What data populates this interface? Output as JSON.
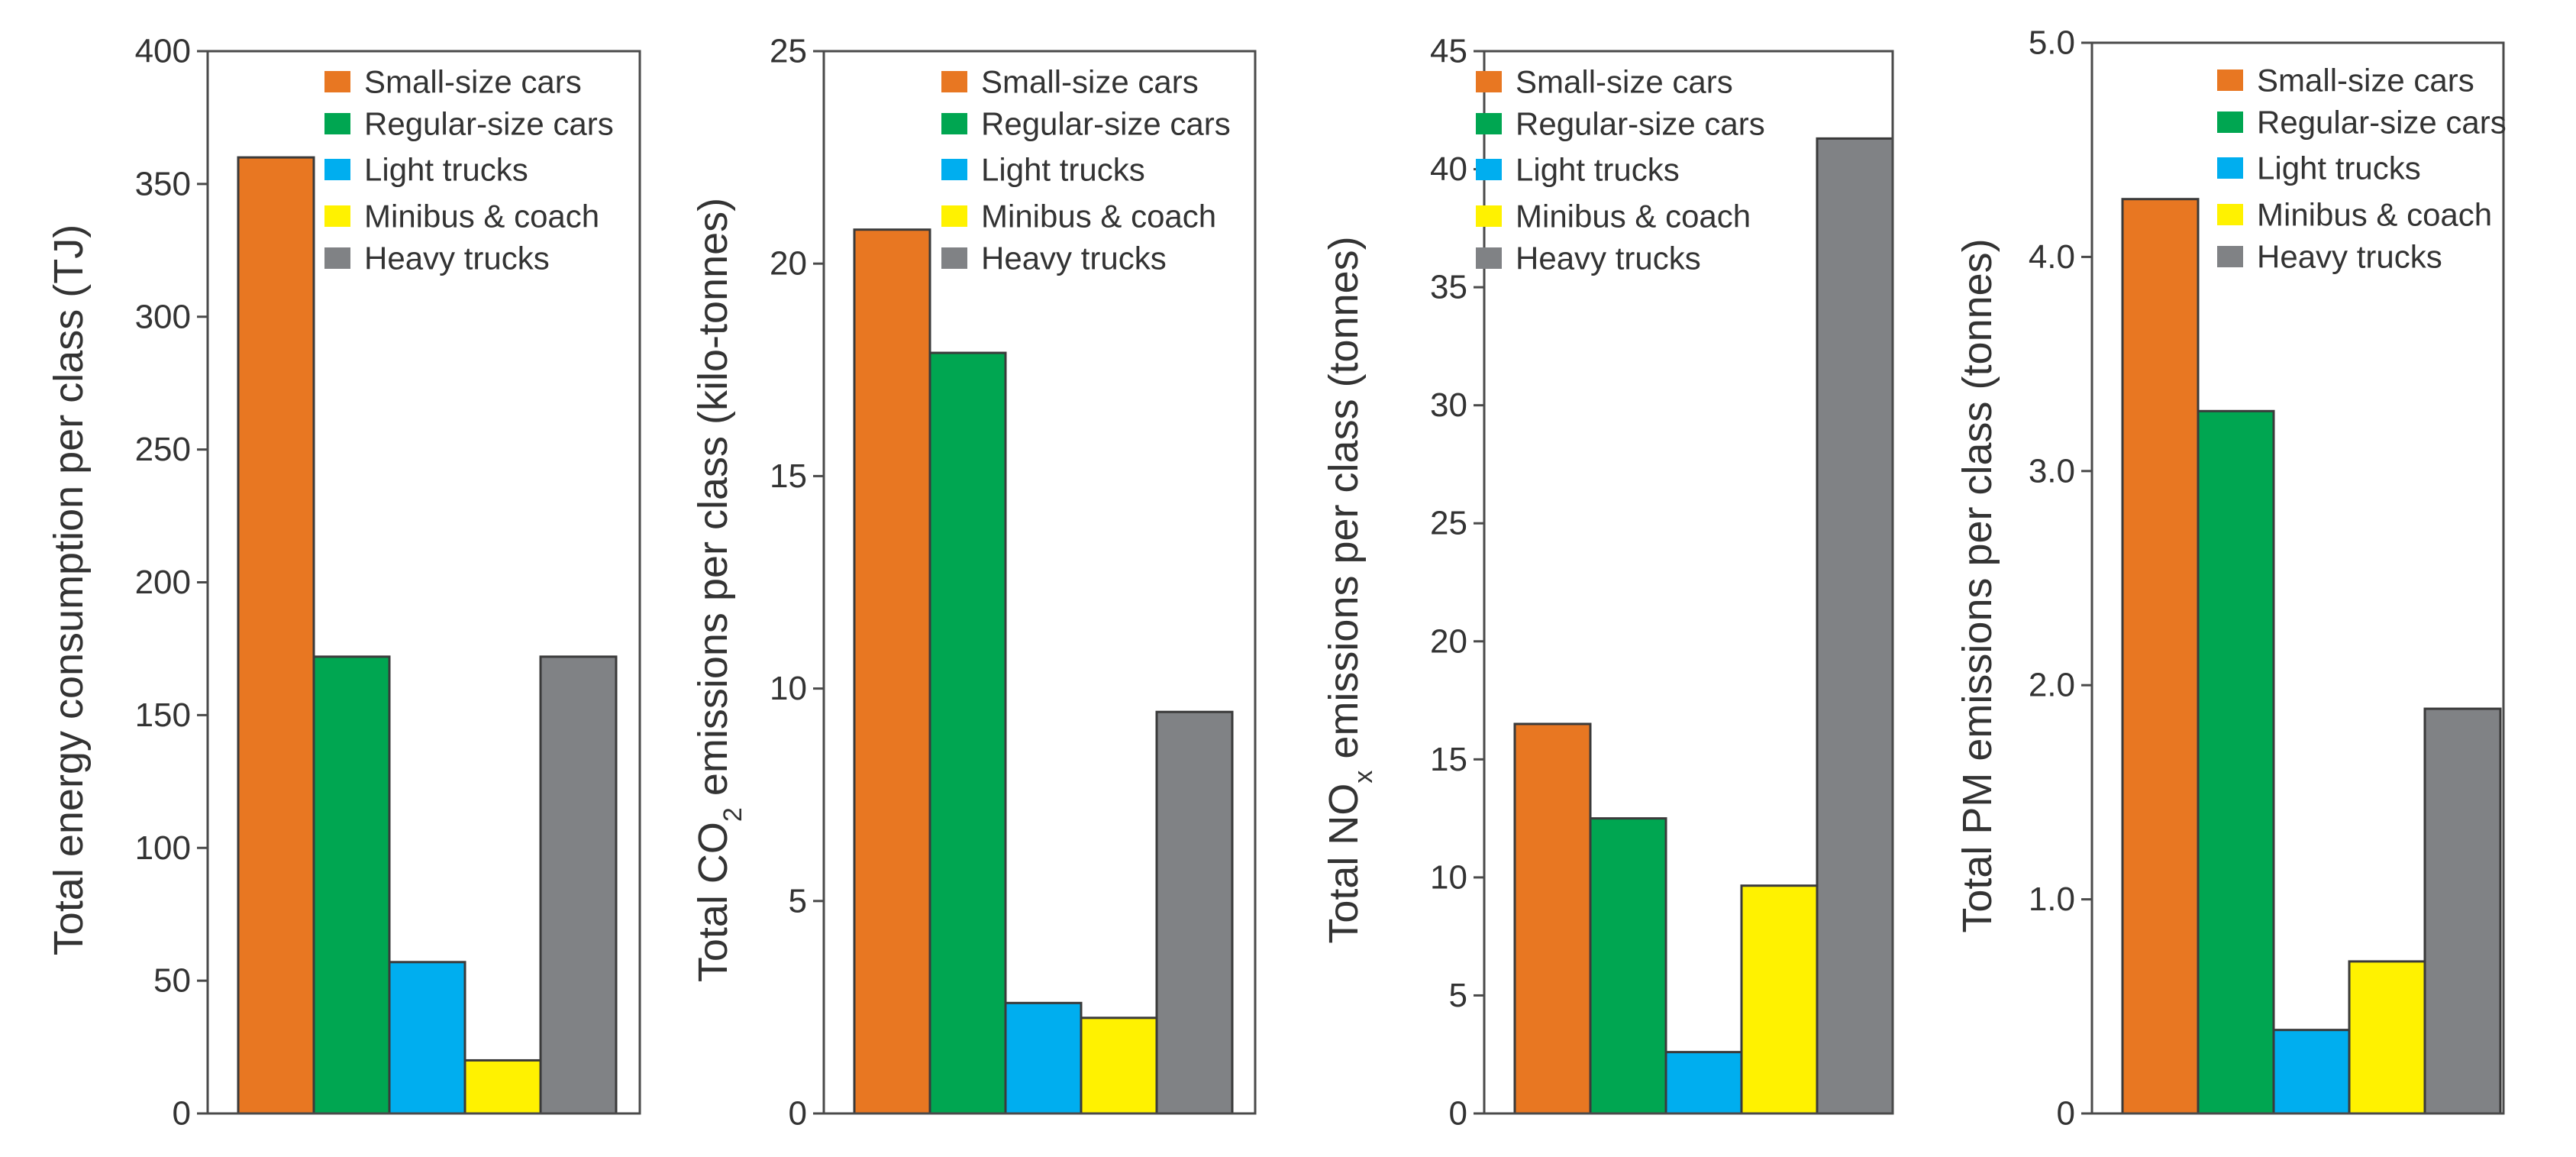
{
  "colors": {
    "Small-size cars": "#e87722",
    "Regular-size cars": "#00a651",
    "Light trucks": "#00aeef",
    "Minibus & coach": "#fff200",
    "Heavy trucks": "#808285"
  },
  "chart_data": [
    {
      "type": "bar",
      "title": "",
      "xlabel": "",
      "ylabel": "Total energy consumption per class (TJ)",
      "ylabel_parts": [
        {
          "t": "Total energy consumption per class (TJ)"
        }
      ],
      "categories": [
        "Small-size cars",
        "Regular-size cars",
        "Light trucks",
        "Minibus & coach",
        "Heavy trucks"
      ],
      "values": [
        360,
        172,
        57,
        20,
        172
      ],
      "ylim": [
        0,
        400
      ],
      "yticks": [
        0,
        50,
        100,
        150,
        200,
        250,
        300,
        350,
        400
      ],
      "ytick_labels": [
        "0",
        "50",
        "100",
        "150",
        "200",
        "250",
        "300",
        "350",
        "400"
      ],
      "legend": [
        "Small-size cars",
        "Regular-size cars",
        "Light trucks",
        "Minibus & coach",
        "Heavy trucks"
      ],
      "legend_loc": "top-right",
      "grid": false
    },
    {
      "type": "bar",
      "title": "",
      "xlabel": "",
      "ylabel": "Total CO2 emissions per class (kilo-tonnes)",
      "ylabel_parts": [
        {
          "t": "Total CO"
        },
        {
          "t": "2",
          "sub": true
        },
        {
          "t": " emissions per class (kilo-tonnes)"
        }
      ],
      "categories": [
        "Small-size cars",
        "Regular-size cars",
        "Light trucks",
        "Minibus & coach",
        "Heavy trucks"
      ],
      "values": [
        20.8,
        17.9,
        2.6,
        2.25,
        9.45
      ],
      "ylim": [
        0,
        25
      ],
      "yticks": [
        0,
        5,
        10,
        15,
        20,
        25
      ],
      "ytick_labels": [
        "0",
        "5",
        "10",
        "15",
        "20",
        "25"
      ],
      "legend": [
        "Small-size cars",
        "Regular-size cars",
        "Light trucks",
        "Minibus & coach",
        "Heavy trucks"
      ],
      "legend_loc": "top-right",
      "grid": false
    },
    {
      "type": "bar",
      "title": "",
      "xlabel": "",
      "ylabel": "Total NOx emissions per class (tonnes)",
      "ylabel_parts": [
        {
          "t": "Total NO"
        },
        {
          "t": "x",
          "sub": true
        },
        {
          "t": " emissions per class (tonnes)"
        }
      ],
      "categories": [
        "Small-size cars",
        "Regular-size cars",
        "Light trucks",
        "Minibus & coach",
        "Heavy trucks"
      ],
      "values": [
        16.5,
        12.5,
        2.6,
        9.65,
        41.3
      ],
      "ylim": [
        0,
        45
      ],
      "yticks": [
        0,
        5,
        10,
        15,
        20,
        25,
        30,
        35,
        40,
        45
      ],
      "ytick_labels": [
        "0",
        "5",
        "10",
        "15",
        "20",
        "25",
        "30",
        "35",
        "40",
        "45"
      ],
      "legend": [
        "Small-size cars",
        "Regular-size cars",
        "Light trucks",
        "Minibus & coach",
        "Heavy trucks"
      ],
      "legend_loc": "top-right",
      "grid": false
    },
    {
      "type": "bar",
      "title": "",
      "xlabel": "",
      "ylabel": "Total PM emissions per class (tonnes)",
      "ylabel_parts": [
        {
          "t": "Total PM emissions per class (tonnes)"
        }
      ],
      "categories": [
        "Small-size cars",
        "Regular-size cars",
        "Light trucks",
        "Minibus & coach",
        "Heavy trucks"
      ],
      "values": [
        4.27,
        3.28,
        0.39,
        0.71,
        1.89
      ],
      "ylim": [
        0,
        5
      ],
      "yticks": [
        0,
        1,
        2,
        3,
        4,
        5
      ],
      "ytick_labels": [
        "0",
        "1.0",
        "2.0",
        "3.0",
        "4.0",
        "5.0"
      ],
      "legend": [
        "Small-size cars",
        "Regular-size cars",
        "Light trucks",
        "Minibus & coach",
        "Heavy trucks"
      ],
      "legend_loc": "top-right",
      "grid": false
    }
  ]
}
